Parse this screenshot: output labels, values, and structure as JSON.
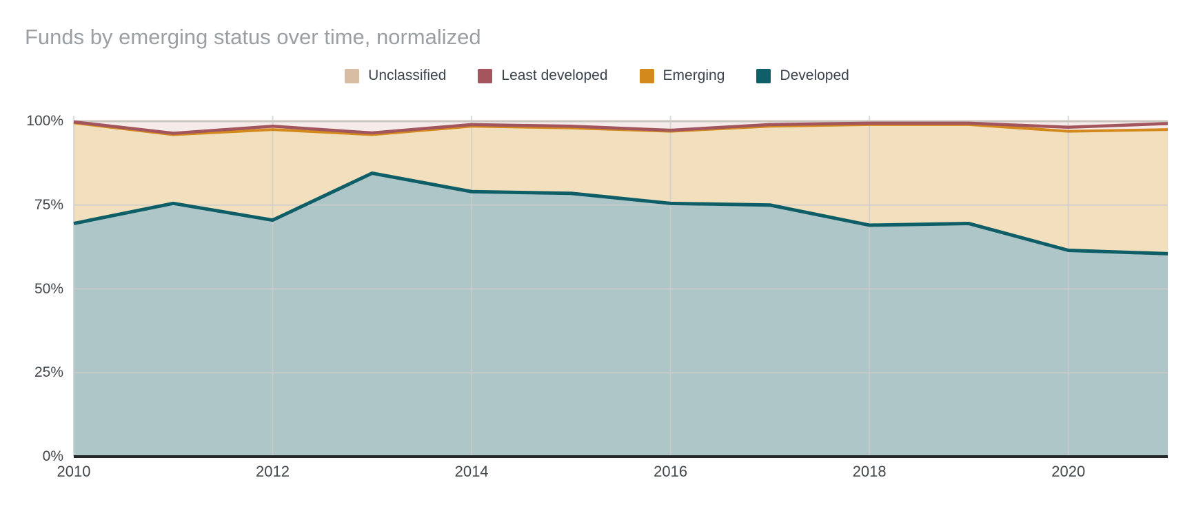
{
  "title": "Funds by emerging status over time, normalized",
  "legend": [
    {
      "label": "Unclassified",
      "color": "#d9bda3"
    },
    {
      "label": "Least developed",
      "color": "#a4555e"
    },
    {
      "label": "Emerging",
      "color": "#d3891c"
    },
    {
      "label": "Developed",
      "color": "#0f5f69"
    }
  ],
  "axes": {
    "y_ticks": [
      "0%",
      "25%",
      "50%",
      "75%",
      "100%"
    ],
    "x_ticks": [
      "2010",
      "2012",
      "2014",
      "2016",
      "2018",
      "2020"
    ]
  },
  "chart_data": {
    "type": "area",
    "stacked": true,
    "normalized": true,
    "grid": true,
    "legend_position": "top",
    "ylim": [
      0,
      100
    ],
    "x": [
      2010,
      2011,
      2012,
      2013,
      2014,
      2015,
      2016,
      2017,
      2018,
      2019,
      2020,
      2021
    ],
    "series": [
      {
        "name": "Developed",
        "color": "#0e5e68",
        "fill": "#aec6c7",
        "values": [
          69.5,
          75.5,
          70.5,
          84.5,
          79,
          78.5,
          75.5,
          75,
          69,
          69.5,
          61.5,
          60.5
        ]
      },
      {
        "name": "Unclassified",
        "color": "#d9bda3",
        "fill": "#f2dfbd",
        "values": [
          30,
          20.5,
          27,
          11.5,
          19.5,
          19.5,
          21.5,
          23.5,
          30,
          29.5,
          35.5,
          37
        ]
      },
      {
        "name": "Emerging",
        "color": "#d3891c",
        "fill": "#e9bd73",
        "values": [
          0.3,
          0.4,
          1.0,
          0.5,
          0.5,
          0.5,
          0.3,
          0.5,
          0.4,
          0.4,
          1.2,
          1.8
        ]
      },
      {
        "name": "Least developed",
        "color": "#a3555e",
        "fill": "#f5ebe9",
        "values": [
          0.2,
          3.6,
          1.5,
          3.5,
          1.0,
          1.5,
          2.7,
          1.0,
          0.6,
          0.6,
          1.8,
          0.7
        ]
      }
    ],
    "colors": {
      "gridline": "#cccccc",
      "top_gridline": "#c9c5bf",
      "baseline": "#24282a",
      "title_text": "#9a9fa3",
      "axis_text": "#42474b",
      "legend_text": "#3b434c"
    }
  }
}
